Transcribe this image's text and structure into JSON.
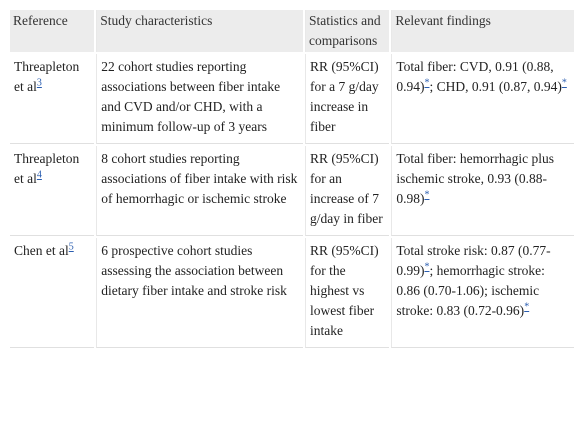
{
  "table": {
    "header": [
      "Reference",
      "Study characteristics",
      "Statistics and comparisons",
      "Relevant findings"
    ],
    "rows": [
      [
        [
          {
            "t": "Threapleton et al"
          },
          {
            "ref": "3"
          }
        ],
        [
          {
            "t": "22 cohort studies reporting associations between fiber intake and CVD and/or CHD, with a minimum follow-up of 3 years"
          }
        ],
        [
          {
            "t": "RR (95%CI) for a 7 g/day increase in fiber"
          }
        ],
        [
          {
            "t": "Total fiber: CVD, 0.91 (0.88, 0.94)"
          },
          {
            "ref": "*"
          },
          {
            "t": "; CHD, 0.91 (0.87, 0.94)"
          },
          {
            "ref": "*"
          }
        ]
      ],
      [
        [
          {
            "t": "Threapleton et al"
          },
          {
            "ref": "4"
          }
        ],
        [
          {
            "t": "8 cohort studies reporting associations of fiber intake with risk of hemorrhagic or ischemic stroke"
          }
        ],
        [
          {
            "t": "RR (95%CI) for an increase of 7 g/day in fiber"
          }
        ],
        [
          {
            "t": "Total fiber: hemorrhagic plus ischemic stroke, 0.93 (0.88-0.98)"
          },
          {
            "ref": "*"
          }
        ]
      ],
      [
        [
          {
            "t": "Chen et al"
          },
          {
            "ref": "5"
          }
        ],
        [
          {
            "t": "6 prospective cohort studies assessing the association between dietary fiber intake and stroke risk"
          }
        ],
        [
          {
            "t": "RR (95%CI) for the highest vs lowest fiber intake"
          }
        ],
        [
          {
            "t": "Total stroke risk: 0.87 (0.77-0.99)"
          },
          {
            "ref": "*"
          },
          {
            "t": "; hemorrhagic stroke: 0.86 (0.70-1.06); ischemic stroke: 0.83 (0.72-0.96)"
          },
          {
            "ref": "*"
          }
        ]
      ]
    ]
  }
}
